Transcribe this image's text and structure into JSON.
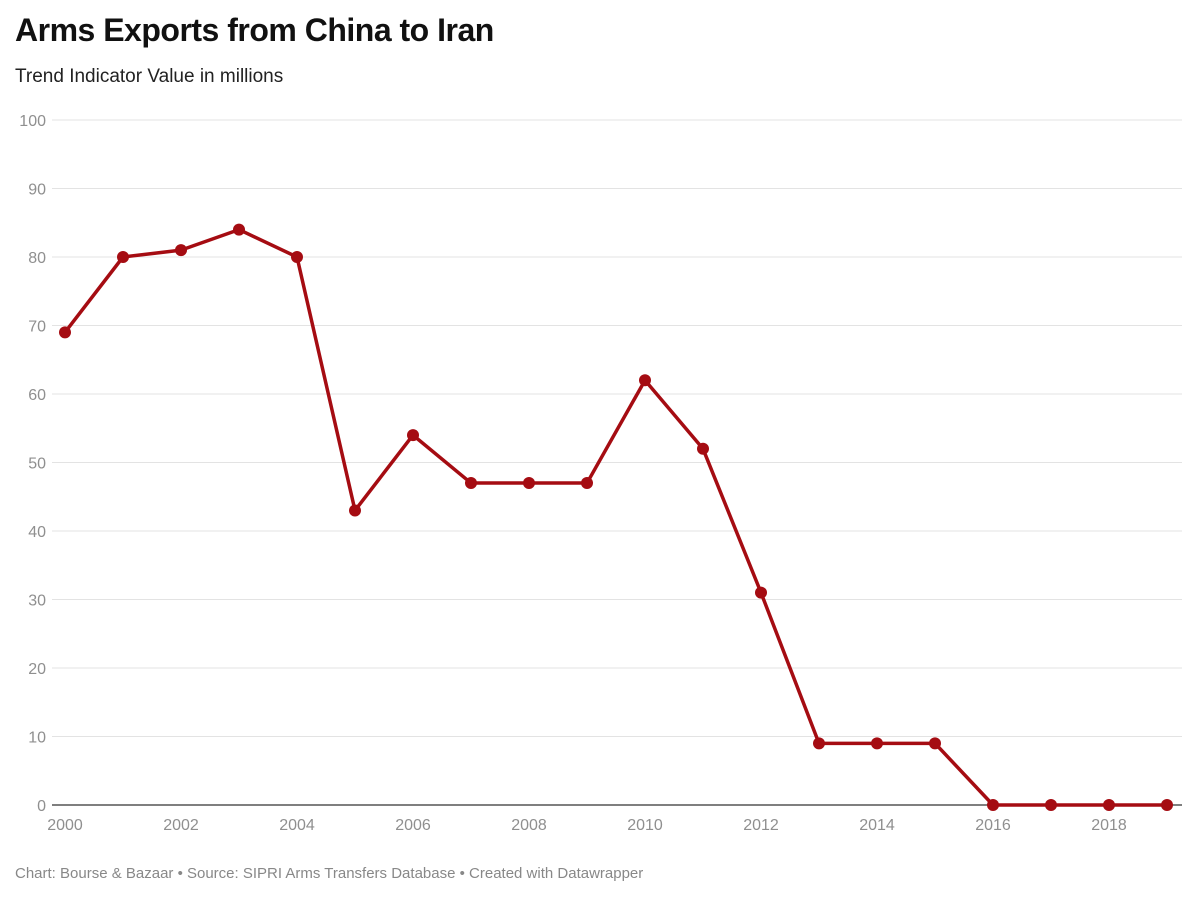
{
  "title": "Arms Exports from China to Iran",
  "subtitle": "Trend Indicator Value in millions",
  "footer": "Chart: Bourse & Bazaar • Source: SIPRI Arms Transfers Database • Created with Datawrapper",
  "colors": {
    "line": "#a50c12",
    "grid": "#e3e3e3",
    "axis": "#333333",
    "tick_text": "#8f8f8f"
  },
  "chart_data": {
    "type": "line",
    "title": "Arms Exports from China to Iran",
    "subtitle": "Trend Indicator Value in millions",
    "xlabel": "",
    "ylabel": "",
    "x": [
      2000,
      2001,
      2002,
      2003,
      2004,
      2005,
      2006,
      2007,
      2008,
      2009,
      2010,
      2011,
      2012,
      2013,
      2014,
      2015,
      2016,
      2017,
      2018,
      2019
    ],
    "series": [
      {
        "values": [
          69,
          80,
          81,
          84,
          80,
          43,
          54,
          47,
          47,
          47,
          62,
          52,
          31,
          9,
          9,
          9,
          0,
          0,
          0,
          0
        ]
      }
    ],
    "xlim": [
      2000,
      2019
    ],
    "ylim": [
      0,
      100
    ],
    "x_ticks": [
      "2000",
      "2002",
      "2004",
      "2006",
      "2008",
      "2010",
      "2012",
      "2014",
      "2016",
      "2018"
    ],
    "y_ticks": [
      "0",
      "10",
      "20",
      "30",
      "40",
      "50",
      "60",
      "70",
      "80",
      "90",
      "100"
    ],
    "grid": true,
    "legend": "none",
    "markers": true
  }
}
